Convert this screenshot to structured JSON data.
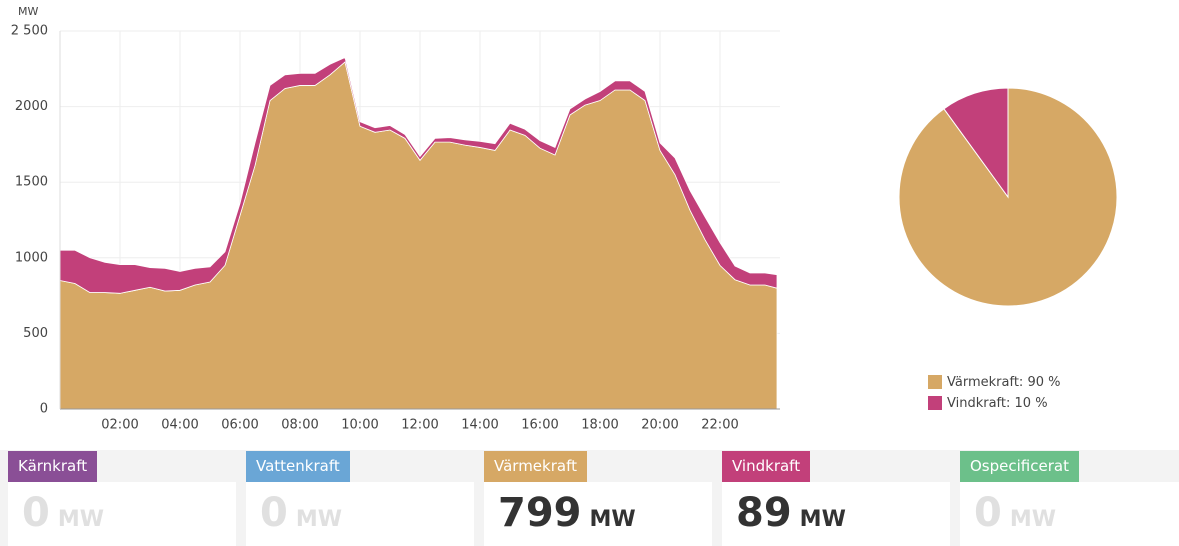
{
  "chart_data": [
    {
      "type": "area",
      "y_unit": "MW",
      "x": [
        0,
        0.5,
        1,
        1.5,
        2,
        2.5,
        3,
        3.5,
        4,
        4.5,
        5,
        5.5,
        6,
        6.5,
        7,
        7.5,
        8,
        8.5,
        9,
        9.5,
        10,
        10.5,
        11,
        11.5,
        12,
        12.5,
        13,
        13.5,
        14,
        14.5,
        15,
        15.5,
        16,
        16.5,
        17,
        17.5,
        18,
        18.5,
        19,
        19.5,
        20,
        20.5,
        21,
        21.5,
        22,
        22.5,
        23,
        23.5,
        23.9
      ],
      "series": [
        {
          "name": "Värmekraft",
          "color": "#d6a865",
          "values": [
            850,
            830,
            770,
            770,
            765,
            785,
            805,
            780,
            785,
            820,
            840,
            950,
            1280,
            1610,
            2040,
            2120,
            2140,
            2140,
            2210,
            2295,
            1870,
            1830,
            1845,
            1790,
            1645,
            1765,
            1765,
            1745,
            1730,
            1710,
            1845,
            1810,
            1725,
            1680,
            1945,
            2010,
            2040,
            2110,
            2110,
            2040,
            1710,
            1550,
            1315,
            1120,
            950,
            855,
            820,
            820,
            799
          ]
        },
        {
          "name": "Vindkraft",
          "color": "#c2407a",
          "values": [
            200,
            220,
            230,
            200,
            190,
            170,
            130,
            150,
            125,
            110,
            100,
            90,
            80,
            150,
            100,
            90,
            80,
            80,
            70,
            30,
            30,
            30,
            30,
            25,
            25,
            25,
            30,
            35,
            40,
            45,
            45,
            40,
            50,
            50,
            40,
            40,
            60,
            60,
            60,
            60,
            50,
            110,
            130,
            150,
            150,
            90,
            80,
            80,
            89
          ]
        }
      ],
      "xlim": [
        0,
        24
      ],
      "xticks": [
        {
          "value": 2,
          "label": "02:00"
        },
        {
          "value": 4,
          "label": "04:00"
        },
        {
          "value": 6,
          "label": "06:00"
        },
        {
          "value": 8,
          "label": "08:00"
        },
        {
          "value": 10,
          "label": "10:00"
        },
        {
          "value": 12,
          "label": "12:00"
        },
        {
          "value": 14,
          "label": "14:00"
        },
        {
          "value": 16,
          "label": "16:00"
        },
        {
          "value": 18,
          "label": "18:00"
        },
        {
          "value": 20,
          "label": "20:00"
        },
        {
          "value": 22,
          "label": "22:00"
        }
      ],
      "ylim": [
        0,
        2500
      ],
      "yticks": [
        0,
        500,
        1000,
        1500,
        2000,
        {
          "value": 2500,
          "label": "2 500"
        }
      ],
      "grid": true
    },
    {
      "type": "pie",
      "series": [
        {
          "name": "Värmekraft",
          "color": "#d6a865",
          "value": 90,
          "value_label": "90 %"
        },
        {
          "name": "Vindkraft",
          "color": "#c2407a",
          "value": 10,
          "value_label": "10 %"
        }
      ]
    }
  ],
  "cards": [
    {
      "name": "Kärnkraft",
      "color": "#8a4f96",
      "value": 0,
      "unit": "MW"
    },
    {
      "name": "Vattenkraft",
      "color": "#6aa6d6",
      "value": 0,
      "unit": "MW"
    },
    {
      "name": "Värmekraft",
      "color": "#d6a865",
      "value": 799,
      "unit": "MW"
    },
    {
      "name": "Vindkraft",
      "color": "#c2407a",
      "value": 89,
      "unit": "MW"
    },
    {
      "name": "Ospecificerat",
      "color": "#6cc08a",
      "value": 0,
      "unit": "MW"
    }
  ]
}
